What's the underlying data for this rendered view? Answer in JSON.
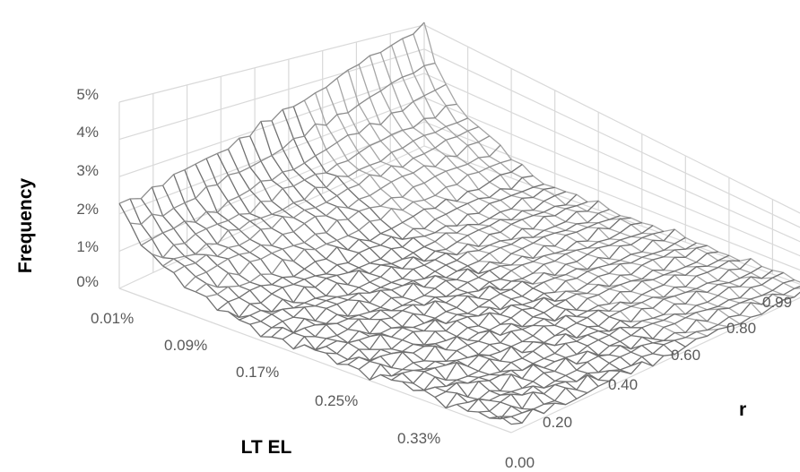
{
  "chart_data": {
    "type": "surface",
    "title": "",
    "zlabel": "Frequency",
    "xlabel": "LT EL",
    "ylabel": "r",
    "z_ticks": [
      "0%",
      "1%",
      "2%",
      "3%",
      "4%",
      "5%"
    ],
    "x_ticks": [
      "0.01%",
      "0.09%",
      "0.17%",
      "0.25%",
      "0.33%"
    ],
    "y_ticks": [
      "0.00",
      "0.20",
      "0.40",
      "0.60",
      "0.80",
      "0.99"
    ],
    "zlim": [
      0,
      0.05
    ],
    "x_range": [
      0.0001,
      0.0037
    ],
    "y_range": [
      0.0,
      0.99
    ],
    "grid": true,
    "legend": "none",
    "colors": {
      "surface_front": "#707070",
      "surface_back": "#a6a6a6",
      "gridline": "#d9d9d9",
      "tick_text": "#595959"
    },
    "surface_description_values": {
      "ridge_peak_z": 0.047,
      "ridge_at_x": 0.0001,
      "ridge_peak_at_y": 0.99,
      "front_left_corner_z": 0.02,
      "baseline_z": 0.004
    }
  }
}
